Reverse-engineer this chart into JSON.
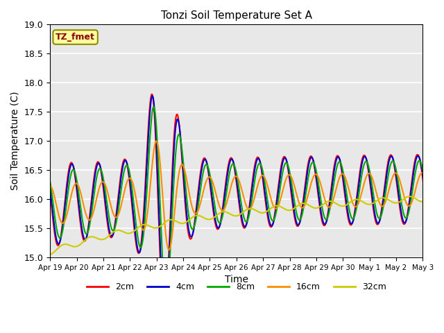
{
  "title": "Tonzi Soil Temperature Set A",
  "xlabel": "Time",
  "ylabel": "Soil Temperature (C)",
  "annotation": "TZ_fmet",
  "annotation_color": "#8B0000",
  "annotation_bg": "#FFFFA0",
  "annotation_border": "#8B8B00",
  "ylim": [
    15.0,
    19.0
  ],
  "series_colors": {
    "2cm": "#FF0000",
    "4cm": "#0000CC",
    "8cm": "#00AA00",
    "16cm": "#FF8C00",
    "32cm": "#CCCC00"
  },
  "series_linewidths": {
    "2cm": 1.5,
    "4cm": 1.5,
    "8cm": 1.5,
    "16cm": 1.5,
    "32cm": 1.5
  },
  "tick_labels": [
    "Apr 19",
    "Apr 20",
    "Apr 21",
    "Apr 22",
    "Apr 23",
    "Apr 24",
    "Apr 25",
    "Apr 26",
    "Apr 27",
    "Apr 28",
    "Apr 29",
    "Apr 30",
    "May 1",
    "May 2",
    "May 3"
  ],
  "bg_color": "#E8E8E8",
  "fig_bg": "#FFFFFF",
  "grid_color": "#FFFFFF",
  "legend_position": "lower center",
  "yticks": [
    15.0,
    15.5,
    16.0,
    16.5,
    17.0,
    17.5,
    18.0,
    18.5,
    19.0
  ]
}
